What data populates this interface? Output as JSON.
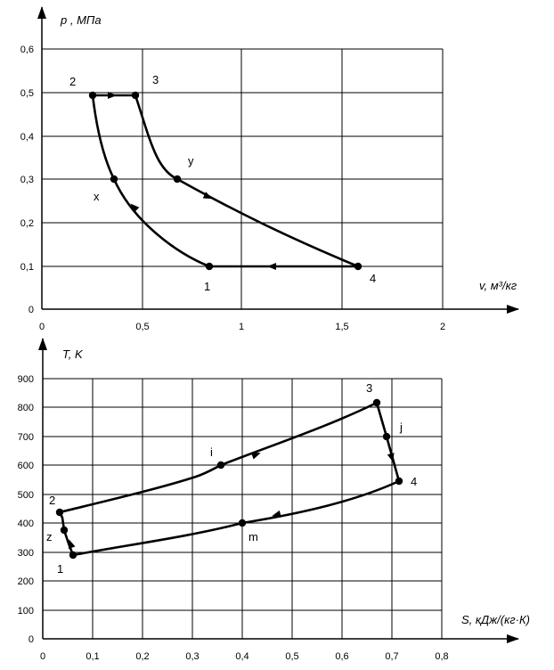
{
  "chart_data": [
    {
      "type": "line",
      "xlabel": "v, м³/кг",
      "ylabel": "p , МПа",
      "xlim": [
        0,
        2
      ],
      "ylim": [
        0,
        0.6
      ],
      "x_ticks": [
        "0",
        "0,5",
        "1",
        "1,5",
        "2"
      ],
      "y_ticks": [
        "0",
        "0,1",
        "0,2",
        "0,3",
        "0,4",
        "0,5",
        "0,6"
      ],
      "grid": true,
      "points": [
        {
          "label": "1",
          "x": 0.84,
          "y": 0.1
        },
        {
          "label": "x",
          "x": 0.36,
          "y": 0.3
        },
        {
          "label": "2",
          "x": 0.25,
          "y": 0.49
        },
        {
          "label": "3",
          "x": 0.47,
          "y": 0.49
        },
        {
          "label": "y",
          "x": 0.68,
          "y": 0.3
        },
        {
          "label": "4",
          "x": 1.58,
          "y": 0.1
        }
      ]
    },
    {
      "type": "line",
      "xlabel": "S, кДж/(кг·К)",
      "ylabel": "T, K",
      "xlim": [
        0,
        0.8
      ],
      "ylim": [
        0,
        900
      ],
      "x_ticks": [
        "0",
        "0,1",
        "0,2",
        "0,3",
        "0,4",
        "0,5",
        "0,6",
        "0,7",
        "0,8"
      ],
      "y_ticks": [
        "0",
        "100",
        "200",
        "300",
        "400",
        "500",
        "600",
        "700",
        "800",
        "900"
      ],
      "grid": true,
      "points": [
        {
          "label": "1",
          "x": 0.06,
          "y": 290
        },
        {
          "label": "z",
          "x": 0.04,
          "y": 375
        },
        {
          "label": "2",
          "x": 0.035,
          "y": 440
        },
        {
          "label": "i",
          "x": 0.36,
          "y": 600
        },
        {
          "label": "3",
          "x": 0.67,
          "y": 815
        },
        {
          "label": "j",
          "x": 0.69,
          "y": 700
        },
        {
          "label": "4",
          "x": 0.715,
          "y": 545
        },
        {
          "label": "m",
          "x": 0.4,
          "y": 400
        }
      ]
    }
  ]
}
